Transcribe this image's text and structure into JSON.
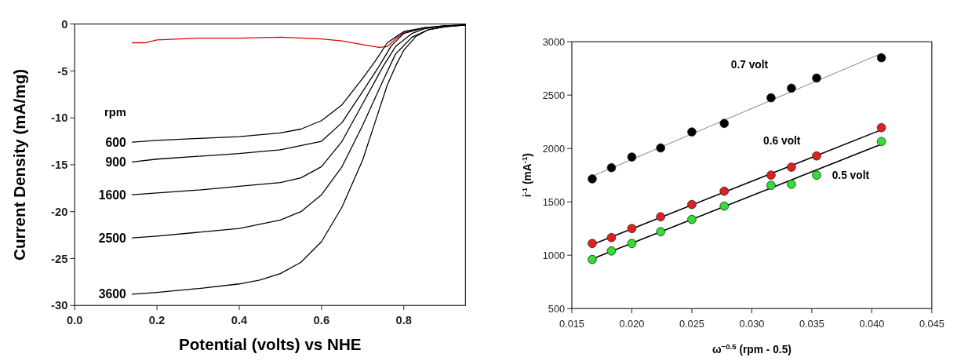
{
  "chart_data": [
    {
      "type": "line",
      "xlabel": "Potential (volts) vs NHE",
      "ylabel": "Current Density (mA/mg)",
      "xlim": [
        0,
        0.95
      ],
      "ylim": [
        -30,
        0
      ],
      "xticks": [
        {
          "value": 0,
          "label": "0.0"
        },
        {
          "value": 0.2,
          "label": "0.2"
        },
        {
          "value": 0.4,
          "label": "0.4"
        },
        {
          "value": 0.6,
          "label": "0.6"
        },
        {
          "value": 0.8,
          "label": "0.8"
        }
      ],
      "yticks": [
        -30,
        -25,
        -20,
        -15,
        -10,
        -5,
        0
      ],
      "grid": false,
      "legend": false,
      "marker": "none",
      "line_style": "solid",
      "annotations": [
        "rpm"
      ],
      "series": [
        {
          "color": "#e00000",
          "x": [
            0.14,
            0.17,
            0.2,
            0.3,
            0.4,
            0.5,
            0.6,
            0.65,
            0.7,
            0.74,
            0.76,
            0.78,
            0.8,
            0.85
          ],
          "values": [
            -2.0,
            -2.0,
            -1.7,
            -1.5,
            -1.5,
            -1.4,
            -1.6,
            -1.8,
            -2.2,
            -2.5,
            -2.4,
            -1.6,
            -0.9,
            -0.4
          ]
        },
        {
          "name": "600",
          "color": "#000000",
          "x": [
            0.14,
            0.2,
            0.3,
            0.4,
            0.5,
            0.55,
            0.6,
            0.65,
            0.7,
            0.73,
            0.76,
            0.8,
            0.85,
            0.9,
            0.95
          ],
          "values": [
            -12.6,
            -12.4,
            -12.2,
            -12.0,
            -11.6,
            -11.2,
            -10.3,
            -8.6,
            -5.8,
            -4.0,
            -2.0,
            -0.8,
            -0.4,
            -0.2,
            -0.1
          ]
        },
        {
          "name": "900",
          "color": "#000000",
          "x": [
            0.14,
            0.2,
            0.3,
            0.4,
            0.5,
            0.6,
            0.65,
            0.7,
            0.74,
            0.77,
            0.8,
            0.85,
            0.9,
            0.95
          ],
          "values": [
            -14.7,
            -14.4,
            -14.1,
            -13.8,
            -13.4,
            -12.5,
            -10.5,
            -7.2,
            -4.5,
            -2.3,
            -1.0,
            -0.4,
            -0.2,
            -0.1
          ]
        },
        {
          "name": "1600",
          "color": "#000000",
          "x": [
            0.14,
            0.2,
            0.3,
            0.4,
            0.5,
            0.55,
            0.6,
            0.65,
            0.7,
            0.75,
            0.78,
            0.82,
            0.85,
            0.9,
            0.95
          ],
          "values": [
            -18.2,
            -18.0,
            -17.7,
            -17.3,
            -16.9,
            -16.4,
            -15.2,
            -12.5,
            -8.5,
            -4.5,
            -2.4,
            -1.0,
            -0.5,
            -0.2,
            -0.1
          ]
        },
        {
          "name": "2500",
          "color": "#000000",
          "x": [
            0.14,
            0.2,
            0.3,
            0.4,
            0.5,
            0.55,
            0.6,
            0.65,
            0.7,
            0.75,
            0.78,
            0.82,
            0.86,
            0.9,
            0.95
          ],
          "values": [
            -22.8,
            -22.6,
            -22.2,
            -21.8,
            -20.9,
            -20.0,
            -18.2,
            -15.2,
            -10.8,
            -6.0,
            -3.2,
            -1.4,
            -0.6,
            -0.3,
            -0.1
          ]
        },
        {
          "name": "3600",
          "color": "#000000",
          "x": [
            0.14,
            0.2,
            0.3,
            0.4,
            0.45,
            0.5,
            0.55,
            0.6,
            0.65,
            0.7,
            0.73,
            0.76,
            0.78,
            0.8,
            0.83,
            0.86,
            0.9,
            0.95
          ],
          "values": [
            -28.8,
            -28.6,
            -28.2,
            -27.7,
            -27.3,
            -26.6,
            -25.4,
            -23.2,
            -19.5,
            -14.5,
            -10.5,
            -6.5,
            -4.5,
            -2.8,
            -1.3,
            -0.6,
            -0.3,
            -0.1
          ]
        }
      ]
    },
    {
      "type": "scatter",
      "xlabel": "ω$^{−0.5}$ (rpm - 0.5)",
      "ylabel": "i$^{-1}$ (mA$^{-1}$)",
      "xlim": [
        0.015,
        0.045
      ],
      "ylim": [
        500,
        3000
      ],
      "xticks": [
        {
          "value": 0.015,
          "label": "0.015"
        },
        {
          "value": 0.02,
          "label": "0.020"
        },
        {
          "value": 0.025,
          "label": "0.025"
        },
        {
          "value": 0.03,
          "label": "0.030"
        },
        {
          "value": 0.035,
          "label": "0.035"
        },
        {
          "value": 0.04,
          "label": "0.040"
        },
        {
          "value": 0.045,
          "label": "0.045"
        }
      ],
      "yticks": [
        500,
        1000,
        1500,
        2000,
        2500,
        3000
      ],
      "grid": false,
      "legend": false,
      "marker": "circle",
      "x": [
        0.0167,
        0.0183,
        0.02,
        0.0224,
        0.025,
        0.0277,
        0.0316,
        0.0333,
        0.0354,
        0.0408
      ],
      "series": [
        {
          "name": "0.7 volt",
          "color": "#000000",
          "values": [
            1715,
            1820,
            1920,
            2005,
            2155,
            2235,
            2475,
            2565,
            2660,
            2850
          ]
        },
        {
          "name": "0.6 volt",
          "color": "#e02020",
          "values": [
            1110,
            1165,
            1250,
            1360,
            1475,
            1600,
            1750,
            1825,
            1930,
            2195
          ]
        },
        {
          "name": "0.5 volt",
          "color": "#33dd33",
          "values": [
            960,
            1040,
            1110,
            1220,
            1335,
            1460,
            1655,
            1665,
            1750,
            2065
          ]
        },
        {
          "type": "line",
          "marker": "none",
          "color": "#808080",
          "x": [
            0.0167,
            0.0408
          ],
          "values": [
            1740,
            2890
          ]
        },
        {
          "type": "line",
          "marker": "none",
          "color": "#000000",
          "x": [
            0.0167,
            0.0408
          ],
          "values": [
            1100,
            2175
          ]
        },
        {
          "type": "line",
          "marker": "none",
          "color": "#000000",
          "x": [
            0.0167,
            0.0408
          ],
          "values": [
            965,
            2040
          ]
        }
      ]
    }
  ]
}
